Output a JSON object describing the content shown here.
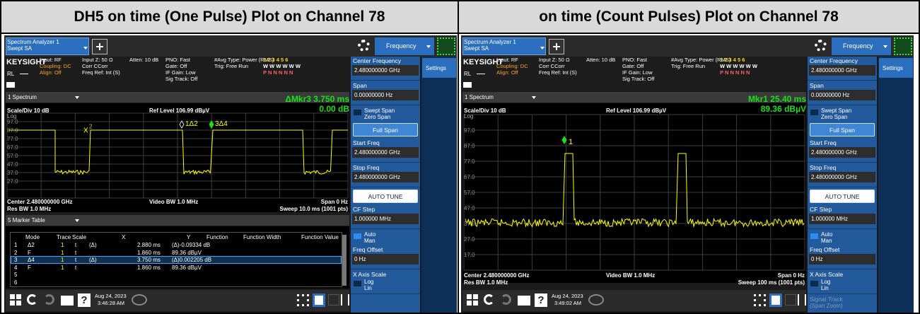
{
  "titles": [
    "DH5 on time (One Pulse) Plot on Channel 78",
    "on time (Count Pulses) Plot on Channel 78"
  ],
  "panels": [
    {
      "tab": [
        "Spectrum Analyzer 1",
        "Swept SA"
      ],
      "menu": "Frequency",
      "side_tab": "Settings",
      "brand": "KEYSIGHT",
      "rl": "RL",
      "status": [
        [
          "Input: RF",
          "Coupling: DC",
          "Align: Off"
        ],
        [
          "Input Z: 50 Ω",
          "Corr CCorr",
          "Freq Ref: Int (S)"
        ],
        [
          "Atten: 10 dB"
        ],
        [
          "PNO: Fast",
          "Gate: Off",
          "IF Gain: Low",
          "Sig Track: Off"
        ],
        [
          "#Avg Type: Power (RMS)",
          "Trig: Free Run"
        ]
      ],
      "trace_rows": [
        "1 2 3 4 5 6",
        "W W W W W W",
        "P N N N N N"
      ],
      "window": "1 Spectrum",
      "marker_readout": [
        "ΔMkr3 3.750 ms",
        "0.00 dB"
      ],
      "scale": "Scale/Div 10 dB",
      "ref_level": "Ref Level 106.99 dBµV",
      "log": "Log",
      "y_labels": [
        "97.0",
        "87.0",
        "77.0",
        "67.0",
        "57.0",
        "47.0",
        "37.0",
        "27.0"
      ],
      "marker_labels": [
        "X",
        "2",
        "1Δ2",
        "3Δ4"
      ],
      "footer": [
        "Center 2.480000000 GHz",
        "Video BW 1.0 MHz",
        "Span 0 Hz",
        "Res BW 1.0 MHz",
        "Sweep 10.0 ms (1001 pts)"
      ],
      "marker_table": {
        "title": "5 Marker Table",
        "columns": [
          "Mode",
          "Trace",
          "Scale",
          "X",
          "Y",
          "Function",
          "Function Width",
          "Function Value"
        ],
        "rows": [
          {
            "n": "1",
            "mode": "Δ2",
            "trace": "1",
            "scale": "t",
            "ref": "(Δ)",
            "x": "2.880 ms",
            "y": "(Δ)-0.09334 dB"
          },
          {
            "n": "2",
            "mode": "F",
            "trace": "1",
            "scale": "t",
            "x": "1.860 ms",
            "y": "89.36 dBµV"
          },
          {
            "n": "3",
            "mode": "Δ4",
            "trace": "1",
            "scale": "t",
            "ref": "(Δ)",
            "x": "3.750 ms",
            "y": "(Δ)0.002205 dB"
          },
          {
            "n": "4",
            "mode": "F",
            "trace": "1",
            "scale": "t",
            "x": "1.860 ms",
            "y": "89.36 dBµV"
          },
          {
            "n": "5"
          },
          {
            "n": "6"
          }
        ]
      },
      "softkeys": [
        {
          "label": "Center Frequency",
          "value": "2.480000000 GHz"
        },
        {
          "label": "Span",
          "value": "0.00000000 Hz"
        },
        {
          "toggle": [
            "Swept Span",
            "Zero Span"
          ]
        },
        {
          "button": "Full Span"
        },
        {
          "label": "Start Freq",
          "value": "2.480000000 GHz"
        },
        {
          "label": "Stop Freq",
          "value": "2.480000000 GHz"
        },
        {
          "button": "AUTO TUNE"
        },
        {
          "label": "CF Step",
          "value": "1.000000 MHz"
        },
        {
          "toggle": [
            "Auto",
            "Man"
          ]
        },
        {
          "label": "Freq Offset",
          "value": "0 Hz"
        },
        {
          "label": "X Axis Scale",
          "toggle": [
            "Log",
            "Lin"
          ]
        }
      ],
      "taskbar": {
        "help": "?",
        "date": "Aug 24, 2023",
        "time": "3:46:28 AM"
      }
    },
    {
      "tab": [
        "Spectrum Analyzer 1",
        "Swept SA"
      ],
      "menu": "Frequency",
      "side_tab": "Settings",
      "brand": "KEYSIGHT",
      "rl": "RL",
      "status": [
        [
          "Input: RF",
          "Coupling: DC",
          "Align: Off"
        ],
        [
          "Input Z: 50 Ω",
          "Corr CCorr",
          "Freq Ref: Int (S)"
        ],
        [
          "Atten: 10 dB"
        ],
        [
          "PNO: Fast",
          "Gate: Off",
          "IF Gain: Low",
          "Sig Track: Off"
        ],
        [
          "#Avg Type: Power (RMS)",
          "Trig: Free Run"
        ]
      ],
      "trace_rows": [
        "1 2 3 4 5 6",
        "W W W W W W",
        "P N N N N N"
      ],
      "window": "1 Spectrum",
      "marker_readout": [
        "Mkr1 25.40 ms",
        "89.36 dBµV"
      ],
      "scale": "Scale/Div 10 dB",
      "ref_level": "Ref Level 106.99 dBµV",
      "log": "Log",
      "y_labels": [
        "97.0",
        "87.0",
        "77.0",
        "67.0",
        "57.0",
        "47.0",
        "37.0",
        "27.0",
        "17.0"
      ],
      "marker_labels": [
        "1"
      ],
      "footer": [
        "Center 2.480000000 GHz",
        "Video BW 1.0 MHz",
        "Span 0 Hz",
        "Res BW 1.0 MHz",
        "Sweep 100 ms (1001 pts)"
      ],
      "softkeys": [
        {
          "label": "Center Frequency",
          "value": "2.480000000 GHz"
        },
        {
          "label": "Span",
          "value": "0.00000000 Hz"
        },
        {
          "toggle": [
            "Swept Span",
            "Zero Span"
          ]
        },
        {
          "button": "Full Span"
        },
        {
          "label": "Start Freq",
          "value": "2.480000000 GHz"
        },
        {
          "label": "Stop Freq",
          "value": "2.480000000 GHz"
        },
        {
          "button": "AUTO TUNE"
        },
        {
          "label": "CF Step",
          "value": "1.000000 MHz"
        },
        {
          "toggle": [
            "Auto",
            "Man"
          ]
        },
        {
          "label": "Freq Offset",
          "value": "0 Hz"
        },
        {
          "label": "X Axis Scale",
          "toggle": [
            "Log",
            "Lin"
          ]
        },
        {
          "label": "Signal Track",
          "sub": "(Span Zoom)"
        }
      ],
      "taskbar": {
        "help": "?",
        "date": "Aug 24, 2023",
        "time": "3:49:02 AM"
      }
    }
  ]
}
